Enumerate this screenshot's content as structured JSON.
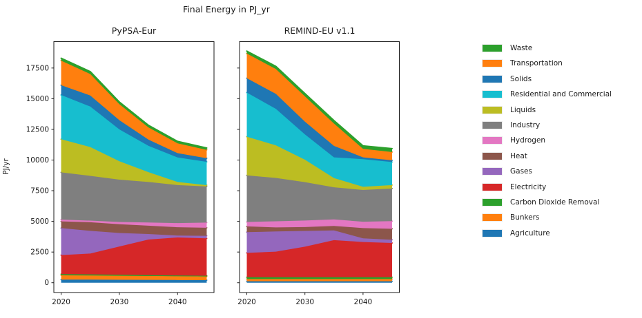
{
  "figure": {
    "title": "Final Energy in PJ_yr",
    "y_axis_label": "PJ/yr"
  },
  "axis": {
    "x_min": 2018.75,
    "x_max": 2046.25,
    "y_min": -800,
    "y_max": 19650,
    "x_tick_years": [
      2020,
      2030,
      2040
    ],
    "x_tick_labels": [
      "2020",
      "2030",
      "2040"
    ],
    "y_ticks": [
      0,
      2500,
      5000,
      7500,
      10000,
      12500,
      15000,
      17500
    ],
    "y_tick_labels": [
      "0",
      "2500",
      "5000",
      "7500",
      "10000",
      "12500",
      "15000",
      "17500"
    ]
  },
  "legend": [
    {
      "label": "Waste",
      "color": "#2ca02c"
    },
    {
      "label": "Transportation",
      "color": "#ff7f0e"
    },
    {
      "label": "Solids",
      "color": "#1f77b4"
    },
    {
      "label": "Residential and Commercial",
      "color": "#17becf"
    },
    {
      "label": "Liquids",
      "color": "#bcbd22"
    },
    {
      "label": "Industry",
      "color": "#7f7f7f"
    },
    {
      "label": "Hydrogen",
      "color": "#e377c2"
    },
    {
      "label": "Heat",
      "color": "#8c564b"
    },
    {
      "label": "Gases",
      "color": "#9467bd"
    },
    {
      "label": "Electricity",
      "color": "#d62728"
    },
    {
      "label": "Carbon Dioxide Removal",
      "color": "#2ca02c"
    },
    {
      "label": "Bunkers",
      "color": "#ff7f0e"
    },
    {
      "label": "Agriculture",
      "color": "#1f77b4"
    }
  ],
  "chart_data": [
    {
      "type": "area",
      "title": "PyPSA-Eur",
      "xlabel": "",
      "ylabel": "PJ/yr",
      "x": [
        2020,
        2025,
        2030,
        2035,
        2040,
        2045
      ],
      "stack_order": "bottom-to-top",
      "series": [
        {
          "name": "Agriculture",
          "color": "#1f77b4",
          "values": [
            250,
            250,
            240,
            230,
            220,
            210
          ]
        },
        {
          "name": "Bunkers",
          "color": "#ff7f0e",
          "values": [
            350,
            340,
            330,
            320,
            310,
            300
          ]
        },
        {
          "name": "Carbon Dioxide Removal",
          "color": "#2ca02c",
          "values": [
            100,
            90,
            80,
            70,
            60,
            60
          ]
        },
        {
          "name": "Electricity",
          "color": "#d62728",
          "values": [
            1550,
            1700,
            2300,
            2900,
            3100,
            3050
          ]
        },
        {
          "name": "Gases",
          "color": "#9467bd",
          "values": [
            2200,
            1850,
            1100,
            450,
            150,
            200
          ]
        },
        {
          "name": "Heat",
          "color": "#8c564b",
          "values": [
            550,
            700,
            720,
            680,
            680,
            660
          ]
        },
        {
          "name": "Hydrogen",
          "color": "#e377c2",
          "values": [
            150,
            130,
            180,
            260,
            340,
            420
          ]
        },
        {
          "name": "Industry",
          "color": "#7f7f7f",
          "values": [
            3850,
            3650,
            3450,
            3300,
            3100,
            2950
          ]
        },
        {
          "name": "Liquids",
          "color": "#bcbd22",
          "values": [
            2700,
            2350,
            1500,
            800,
            250,
            100
          ]
        },
        {
          "name": "Residential and Commercial",
          "color": "#17becf",
          "values": [
            3600,
            3300,
            2600,
            2150,
            2000,
            1900
          ]
        },
        {
          "name": "Solids",
          "color": "#1f77b4",
          "values": [
            800,
            900,
            750,
            500,
            350,
            300
          ]
        },
        {
          "name": "Transportation",
          "color": "#ff7f0e",
          "values": [
            2000,
            1750,
            1300,
            1000,
            800,
            680
          ]
        },
        {
          "name": "Waste",
          "color": "#2ca02c",
          "values": [
            200,
            200,
            180,
            170,
            160,
            150
          ]
        }
      ]
    },
    {
      "type": "area",
      "title": "REMIND-EU v1.1",
      "xlabel": "",
      "ylabel": "",
      "x": [
        2020,
        2025,
        2030,
        2035,
        2040,
        2045
      ],
      "stack_order": "bottom-to-top",
      "series": [
        {
          "name": "Agriculture",
          "color": "#1f77b4",
          "values": [
            120,
            120,
            120,
            120,
            120,
            120
          ]
        },
        {
          "name": "Bunkers",
          "color": "#ff7f0e",
          "values": [
            180,
            180,
            180,
            180,
            180,
            180
          ]
        },
        {
          "name": "Carbon Dioxide Removal",
          "color": "#2ca02c",
          "values": [
            150,
            150,
            150,
            150,
            150,
            150
          ]
        },
        {
          "name": "Electricity",
          "color": "#d62728",
          "values": [
            1980,
            2080,
            2490,
            3020,
            2870,
            2790
          ]
        },
        {
          "name": "Gases",
          "color": "#9467bd",
          "values": [
            1690,
            1650,
            1280,
            790,
            300,
            260
          ]
        },
        {
          "name": "Heat",
          "color": "#8c564b",
          "values": [
            470,
            330,
            320,
            370,
            830,
            900
          ]
        },
        {
          "name": "Hydrogen",
          "color": "#e377c2",
          "values": [
            360,
            500,
            530,
            530,
            520,
            620
          ]
        },
        {
          "name": "Industry",
          "color": "#7f7f7f",
          "values": [
            3800,
            3530,
            3130,
            2620,
            2590,
            2660
          ]
        },
        {
          "name": "Liquids",
          "color": "#bcbd22",
          "values": [
            3150,
            2660,
            1830,
            750,
            260,
            280
          ]
        },
        {
          "name": "Residential and Commercial",
          "color": "#17becf",
          "values": [
            3600,
            2970,
            2060,
            1690,
            2250,
            1880
          ]
        },
        {
          "name": "Solids",
          "color": "#1f77b4",
          "values": [
            1170,
            1220,
            1040,
            930,
            150,
            140
          ]
        },
        {
          "name": "Transportation",
          "color": "#ff7f0e",
          "values": [
            2010,
            2030,
            2060,
            1820,
            690,
            670
          ]
        },
        {
          "name": "Waste",
          "color": "#2ca02c",
          "values": [
            200,
            220,
            230,
            250,
            250,
            280
          ]
        }
      ]
    }
  ]
}
